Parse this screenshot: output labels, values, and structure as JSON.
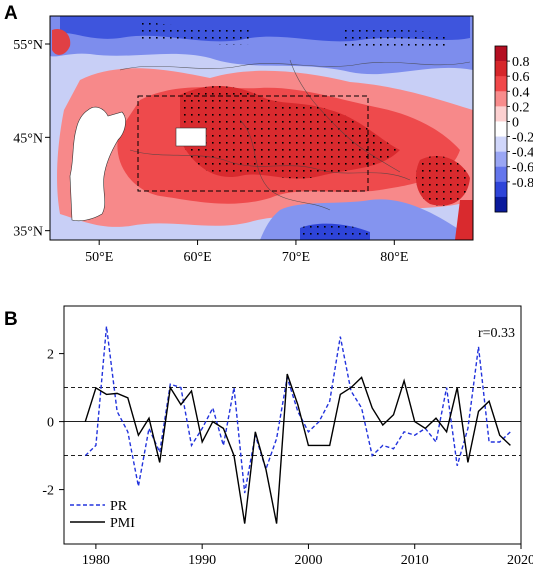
{
  "panel_a": {
    "label": "A",
    "lon_ticks": [
      "50°E",
      "60°E",
      "70°E",
      "80°E"
    ],
    "lat_ticks": [
      "55°N",
      "45°N",
      "35°N"
    ],
    "colorbar_ticks": [
      "0.8",
      "0.6",
      "0.4",
      "0.2",
      "0",
      "-0.2",
      "-0.4",
      "-0.6",
      "-0.8"
    ],
    "colorbar_colors": [
      "#b40f22",
      "#d6262a",
      "#f0484a",
      "#f88c8c",
      "#fcd0d0",
      "#ffffff",
      "#d0d6fa",
      "#9aa6f4",
      "#6476ec",
      "#2e44d8",
      "#0a1a9c"
    ],
    "colors": {
      "land_missing": "#ffffff",
      "box_line": "#000000",
      "stipple": "#000000"
    }
  },
  "panel_b": {
    "label": "B",
    "annotation": "r=0.33"
  },
  "chart_data": [
    {
      "type": "heatmap",
      "title": "",
      "xlabel": "",
      "ylabel": "",
      "x_range": [
        45,
        88
      ],
      "y_range": [
        34,
        58
      ],
      "xticks": [
        50,
        60,
        70,
        80
      ],
      "yticks": [
        35,
        45,
        55
      ],
      "value_range": [
        -0.8,
        0.8
      ],
      "box_region": {
        "lon": [
          54,
          78
        ],
        "lat": [
          39,
          48
        ]
      },
      "legend": "right colorbar"
    },
    {
      "type": "line",
      "title": "",
      "xlabel": "",
      "ylabel": "",
      "x_range": [
        1977,
        2020
      ],
      "ylim": [
        -3.6,
        3.4
      ],
      "xticks": [
        1980,
        1990,
        2000,
        2010,
        2020
      ],
      "yticks": [
        -2,
        0,
        2
      ],
      "reference_lines": [
        1,
        0,
        -1
      ],
      "legend_position": "bottom-left",
      "x": [
        1979,
        1980,
        1981,
        1982,
        1983,
        1984,
        1985,
        1986,
        1987,
        1988,
        1989,
        1990,
        1991,
        1992,
        1993,
        1994,
        1995,
        1996,
        1997,
        1998,
        1999,
        2000,
        2001,
        2002,
        2003,
        2004,
        2005,
        2006,
        2007,
        2008,
        2009,
        2010,
        2011,
        2012,
        2013,
        2014,
        2015,
        2016,
        2017,
        2018,
        2019
      ],
      "series": [
        {
          "name": "PR",
          "color": "#2233dd",
          "dash": "dashed",
          "values": [
            -1.0,
            -0.7,
            2.8,
            0.3,
            -0.3,
            -1.9,
            -0.2,
            -0.9,
            1.1,
            1.0,
            -0.7,
            -0.2,
            0.4,
            -0.7,
            1.0,
            -2.1,
            -0.4,
            -1.4,
            -0.5,
            1.3,
            0.3,
            -0.3,
            0.0,
            0.6,
            2.5,
            0.9,
            0.4,
            -1.0,
            -0.7,
            -0.8,
            -0.3,
            -0.4,
            -0.2,
            -0.6,
            1.0,
            -1.3,
            -0.2,
            2.2,
            -0.6,
            -0.6,
            -0.3
          ]
        },
        {
          "name": "PMI",
          "color": "#000000",
          "dash": "solid",
          "values": [
            0.0,
            0.99,
            0.8,
            0.83,
            0.7,
            -0.4,
            0.1,
            -1.2,
            1.0,
            0.5,
            0.9,
            -0.6,
            0.0,
            -0.2,
            -1.0,
            -3.0,
            -0.3,
            -1.4,
            -3.0,
            1.4,
            0.5,
            -0.7,
            -0.7,
            -0.7,
            0.8,
            1.0,
            1.3,
            0.4,
            -0.1,
            0.2,
            1.2,
            0.0,
            -0.2,
            0.1,
            -0.3,
            1.0,
            -1.2,
            0.3,
            0.6,
            -0.4,
            -0.7
          ]
        }
      ]
    }
  ]
}
